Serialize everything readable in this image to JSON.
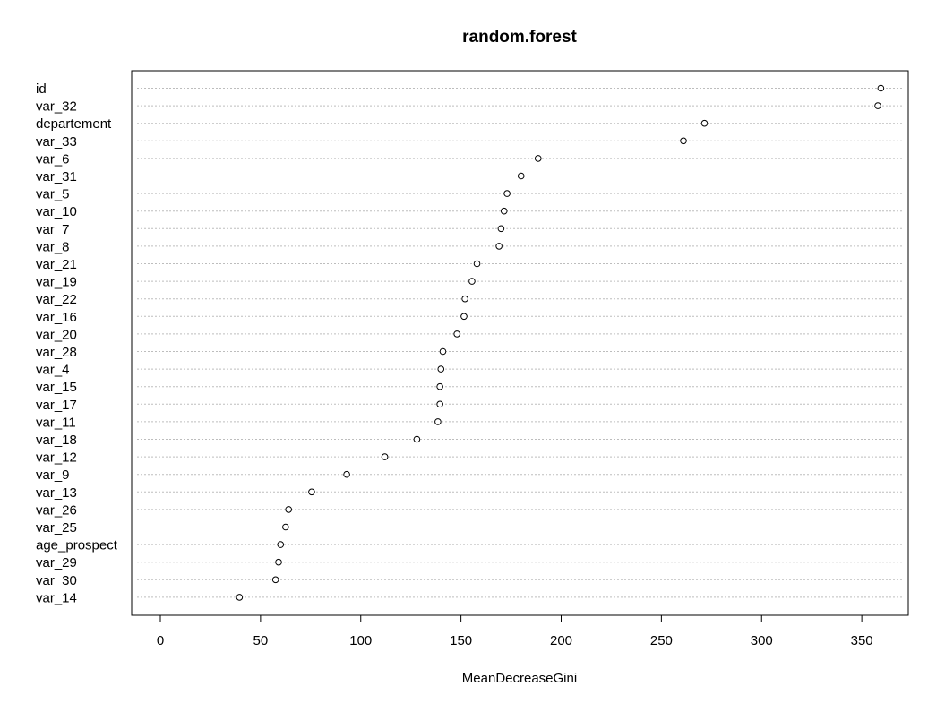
{
  "chart_data": {
    "type": "scatter",
    "title": "random.forest",
    "xlabel": "MeanDecreaseGini",
    "ylabel": "",
    "xlim": [
      -15,
      375
    ],
    "xticks": [
      0,
      50,
      100,
      150,
      200,
      250,
      300,
      350
    ],
    "grid": true,
    "categories": [
      "id",
      "var_32",
      "departement",
      "var_33",
      "var_6",
      "var_31",
      "var_5",
      "var_10",
      "var_7",
      "var_8",
      "var_21",
      "var_19",
      "var_22",
      "var_16",
      "var_20",
      "var_28",
      "var_4",
      "var_15",
      "var_17",
      "var_11",
      "var_18",
      "var_12",
      "var_9",
      "var_13",
      "var_26",
      "var_25",
      "age_prospect",
      "var_29",
      "var_30",
      "var_14"
    ],
    "values": [
      359.5,
      358,
      271.5,
      261,
      188.5,
      180,
      173,
      171.5,
      170,
      169,
      158,
      155.5,
      152,
      151.5,
      148,
      141,
      140,
      139.5,
      139.5,
      138.5,
      128,
      112,
      93,
      75.5,
      64,
      62.5,
      60,
      59,
      57.5,
      39.5
    ]
  }
}
